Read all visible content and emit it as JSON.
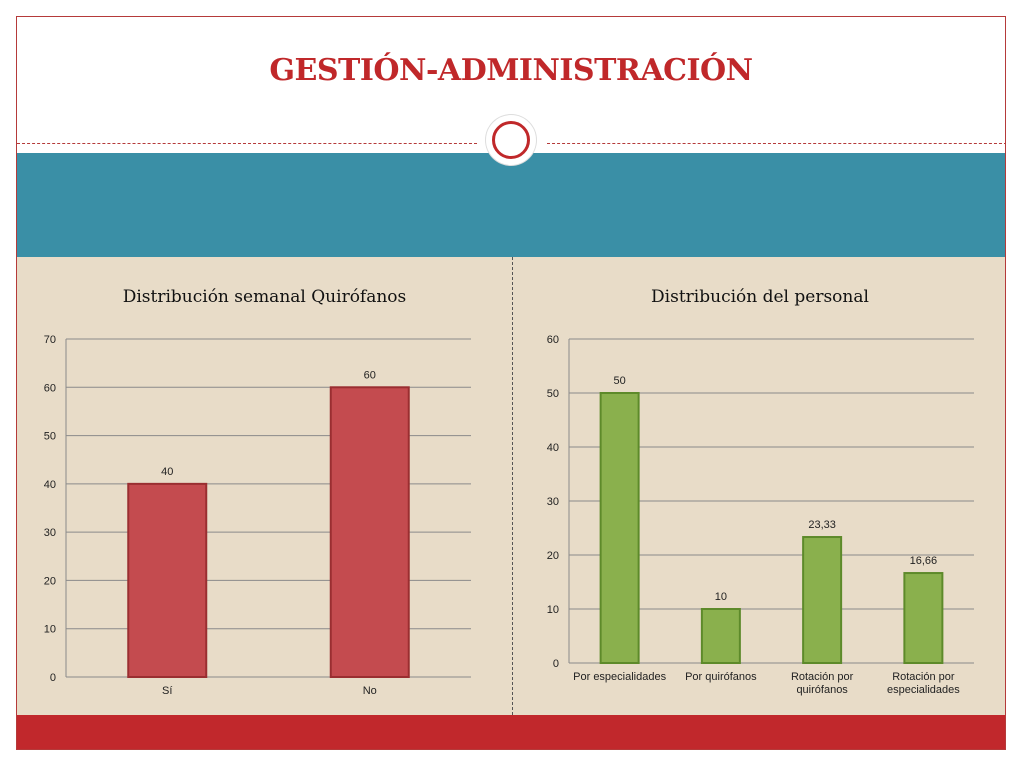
{
  "slide": {
    "title": "GESTIÓN-ADMINISTRACIÓN"
  },
  "colors": {
    "title": "#c0282a",
    "band": "#3a8fa6",
    "content_bg": "#e8dcc8",
    "footer": "#c1282c",
    "bar_red": "#c44b4f",
    "bar_red_border": "#9a2e31",
    "bar_green": "#8ab04d",
    "bar_green_border": "#5d8a2a"
  },
  "chart_data": [
    {
      "type": "bar",
      "title": "Distribución semanal Quirófanos",
      "categories": [
        "Sí",
        "No"
      ],
      "values": [
        40,
        60
      ],
      "value_labels": [
        "40",
        "60"
      ],
      "ylim": [
        0,
        70
      ],
      "yticks": [
        0,
        10,
        20,
        30,
        40,
        50,
        60,
        70
      ],
      "grid": true,
      "xlabel": "",
      "ylabel": ""
    },
    {
      "type": "bar",
      "title": "Distribución del personal",
      "categories": [
        "Por especialidades",
        "Por quirófanos",
        "Rotación por quirófanos",
        "Rotación por especialidades"
      ],
      "values": [
        50,
        10,
        23.33,
        16.66
      ],
      "value_labels": [
        "50",
        "10",
        "23,33",
        "16,66"
      ],
      "ylim": [
        0,
        60
      ],
      "yticks": [
        0,
        10,
        20,
        30,
        40,
        50,
        60
      ],
      "grid": true,
      "xlabel": "",
      "ylabel": ""
    }
  ]
}
